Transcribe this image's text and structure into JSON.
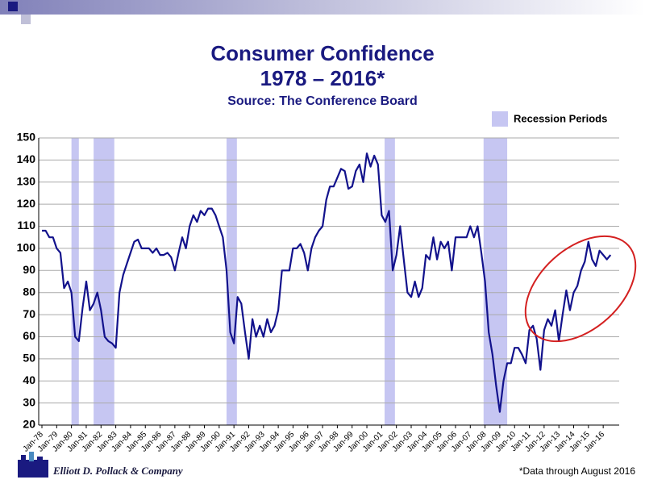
{
  "chart_data": {
    "type": "line",
    "title": "Consumer Confidence",
    "subtitle": "1978 – 2016*",
    "source": "Source: The Conference Board",
    "legend_label": "Recession Periods",
    "recession_color": "#c6c6f2",
    "recessions": [
      [
        1980,
        1980.5
      ],
      [
        1981.5,
        1982.9
      ],
      [
        1990.5,
        1991.2
      ],
      [
        2001.2,
        2001.9
      ],
      [
        2007.9,
        2009.5
      ]
    ],
    "footnote": "*Data through August 2016",
    "company": "Elliott D. Pollack & Company",
    "categories": [
      "Jan-78",
      null,
      null,
      null,
      "Jan-79",
      null,
      null,
      null,
      "Jan-80",
      null,
      null,
      null,
      "Jan-81",
      null,
      null,
      null,
      "Jan-82",
      null,
      null,
      null,
      "Jan-83",
      null,
      null,
      null,
      "Jan-84",
      null,
      null,
      null,
      "Jan-85",
      null,
      null,
      null,
      "Jan-86",
      null,
      null,
      null,
      "Jan-87",
      null,
      null,
      null,
      "Jan-88",
      null,
      null,
      null,
      "Jan-89",
      null,
      null,
      null,
      "Jan-90",
      null,
      null,
      null,
      "Jan-91",
      null,
      null,
      null,
      "Jan-92",
      null,
      null,
      null,
      "Jan-93",
      null,
      null,
      null,
      "Jan-94",
      null,
      null,
      null,
      "Jan-95",
      null,
      null,
      null,
      "Jan-96",
      null,
      null,
      null,
      "Jan-97",
      null,
      null,
      null,
      "Jan-98",
      null,
      null,
      null,
      "Jan-99",
      null,
      null,
      null,
      "Jan-00",
      null,
      null,
      null,
      "Jan-01",
      null,
      null,
      null,
      "Jan-02",
      null,
      null,
      null,
      "Jan-03",
      null,
      null,
      null,
      "Jan-04",
      null,
      null,
      null,
      "Jan-05",
      null,
      null,
      null,
      "Jan-06",
      null,
      null,
      null,
      "Jan-07",
      null,
      null,
      null,
      "Jan-08",
      null,
      null,
      null,
      "Jan-09",
      null,
      null,
      null,
      "Jan-10",
      null,
      null,
      null,
      "Jan-11",
      null,
      null,
      null,
      "Jan-12",
      null,
      null,
      null,
      "Jan-13",
      null,
      null,
      null,
      "Jan-14",
      null,
      null,
      null,
      "Jan-15",
      null,
      null,
      null,
      "Jan-16",
      null,
      null
    ],
    "series": [
      {
        "name": "Consumer Confidence",
        "color": "#12128c",
        "values": [
          108,
          108,
          105,
          105,
          100,
          98,
          82,
          85,
          80,
          60,
          58,
          73,
          85,
          72,
          75,
          80,
          72,
          60,
          58,
          57,
          55,
          80,
          88,
          93,
          98,
          103,
          104,
          100,
          100,
          100,
          98,
          100,
          97,
          97,
          98,
          96,
          90,
          98,
          105,
          100,
          110,
          115,
          112,
          117,
          115,
          118,
          118,
          115,
          110,
          105,
          90,
          62,
          57,
          78,
          75,
          62,
          50,
          68,
          60,
          65,
          60,
          68,
          62,
          65,
          72,
          90,
          90,
          90,
          100,
          100,
          102,
          98,
          90,
          100,
          105,
          108,
          110,
          122,
          128,
          128,
          132,
          136,
          135,
          127,
          128,
          135,
          138,
          130,
          143,
          137,
          142,
          138,
          115,
          112,
          117,
          90,
          97,
          110,
          95,
          80,
          78,
          85,
          78,
          82,
          97,
          95,
          105,
          95,
          103,
          100,
          103,
          90,
          105,
          105,
          105,
          105,
          110,
          105,
          110,
          98,
          85,
          62,
          52,
          38,
          26,
          40,
          48,
          48,
          55,
          55,
          52,
          48,
          63,
          65,
          59,
          45,
          63,
          68,
          65,
          72,
          58,
          70,
          81,
          72,
          80,
          83,
          90,
          94,
          103,
          95,
          92,
          99,
          97,
          95,
          97
        ]
      }
    ],
    "ylim": [
      20,
      150
    ],
    "yticks": [
      20,
      30,
      40,
      50,
      60,
      70,
      80,
      90,
      100,
      110,
      120,
      130,
      140,
      150
    ],
    "grid": true
  }
}
